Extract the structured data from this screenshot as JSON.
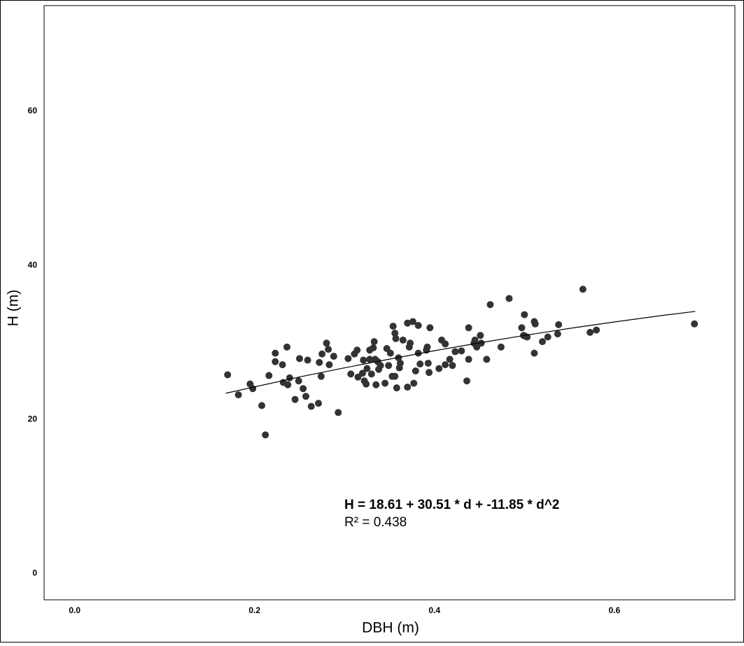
{
  "chart_data": {
    "type": "scatter",
    "x_label": "DBH (m)",
    "y_label": "H (m)",
    "annotations": [
      "H = 18.61 + 30.51 * d + -11.85 * d^2",
      "R² = 0.438"
    ],
    "xlim": [
      -0.034,
      0.734
    ],
    "ylim": [
      -3.4,
      73.7
    ],
    "xticks": [
      {
        "value": 0,
        "label": "0.0"
      },
      0.2,
      0.4,
      0.6
    ],
    "yticks": [
      0,
      20,
      40,
      60
    ],
    "grid": false,
    "series": [
      {
        "type": "scatter",
        "color": "#333333",
        "x": [
          0.17,
          0.182,
          0.195,
          0.198,
          0.208,
          0.212,
          0.216,
          0.223,
          0.223,
          0.231,
          0.232,
          0.236,
          0.237,
          0.239,
          0.245,
          0.249,
          0.25,
          0.254,
          0.257,
          0.259,
          0.263,
          0.271,
          0.272,
          0.274,
          0.275,
          0.28,
          0.282,
          0.283,
          0.288,
          0.293,
          0.304,
          0.307,
          0.311,
          0.314,
          0.315,
          0.32,
          0.321,
          0.322,
          0.324,
          0.325,
          0.328,
          0.328,
          0.33,
          0.332,
          0.333,
          0.334,
          0.335,
          0.337,
          0.338,
          0.34,
          0.345,
          0.347,
          0.349,
          0.351,
          0.353,
          0.354,
          0.356,
          0.356,
          0.357,
          0.358,
          0.36,
          0.361,
          0.362,
          0.365,
          0.37,
          0.37,
          0.372,
          0.373,
          0.376,
          0.377,
          0.379,
          0.382,
          0.382,
          0.384,
          0.391,
          0.392,
          0.393,
          0.394,
          0.395,
          0.405,
          0.408,
          0.412,
          0.412,
          0.417,
          0.42,
          0.423,
          0.43,
          0.436,
          0.438,
          0.438,
          0.444,
          0.445,
          0.447,
          0.451,
          0.452,
          0.458,
          0.462,
          0.474,
          0.483,
          0.497,
          0.499,
          0.5,
          0.501,
          0.503,
          0.511,
          0.511,
          0.512,
          0.52,
          0.526,
          0.537,
          0.538,
          0.565,
          0.573,
          0.58,
          0.689
        ],
        "values": [
          25.8,
          23.2,
          24.6,
          24.0,
          21.8,
          18.0,
          25.7,
          28.6,
          27.5,
          27.1,
          24.8,
          29.4,
          24.5,
          25.4,
          22.6,
          25.0,
          27.9,
          24.0,
          23.0,
          27.7,
          21.7,
          22.1,
          27.4,
          25.6,
          28.5,
          29.9,
          29.1,
          27.1,
          28.2,
          20.9,
          27.9,
          25.9,
          28.5,
          29.0,
          25.5,
          26.0,
          27.7,
          25.0,
          24.6,
          26.6,
          29.0,
          27.8,
          25.9,
          29.3,
          30.1,
          27.8,
          24.5,
          27.5,
          26.5,
          27.0,
          24.7,
          29.2,
          27.0,
          28.6,
          25.6,
          32.1,
          31.2,
          25.6,
          30.5,
          24.1,
          28.0,
          26.7,
          27.3,
          30.3,
          24.2,
          32.5,
          29.4,
          29.9,
          32.7,
          24.7,
          26.3,
          28.6,
          32.2,
          27.2,
          29.0,
          29.4,
          27.3,
          26.1,
          31.9,
          26.6,
          30.3,
          27.1,
          29.8,
          27.8,
          27.0,
          28.8,
          28.9,
          25.0,
          31.9,
          27.8,
          29.9,
          30.3,
          29.4,
          30.9,
          29.9,
          27.8,
          34.9,
          29.4,
          35.7,
          31.9,
          30.9,
          33.6,
          30.8,
          30.7,
          28.6,
          32.7,
          32.4,
          30.1,
          30.7,
          31.1,
          32.3,
          36.9,
          31.3,
          31.6,
          32.4
        ]
      },
      {
        "type": "line",
        "color": "#000000",
        "x": [
          0.168,
          0.25,
          0.3,
          0.35,
          0.4,
          0.45,
          0.5,
          0.55,
          0.6,
          0.65,
          0.69
        ],
        "values": [
          23.4,
          25.52,
          26.7,
          27.83,
          28.92,
          29.94,
          30.9,
          31.81,
          32.65,
          33.45,
          34.02
        ]
      }
    ]
  }
}
